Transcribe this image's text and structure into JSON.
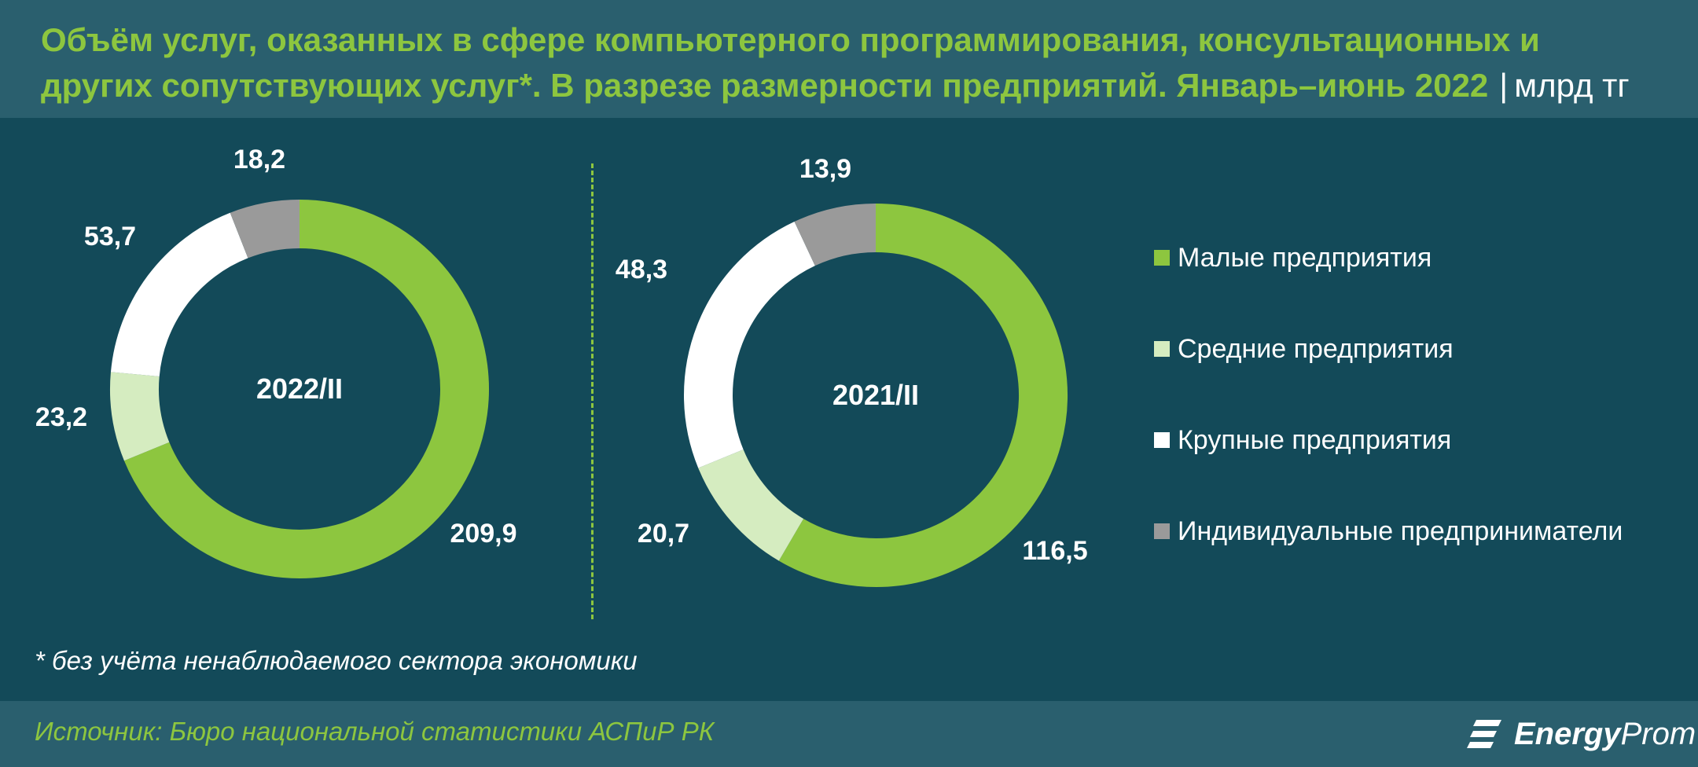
{
  "title": {
    "line1": "Объём услуг, оказанных в сфере компьютерного программирования, консультационных и",
    "line2": "других сопутствующих услуг*. В разрезе размерности предприятий. Январь–июнь 2022",
    "separator": "|",
    "unit": "млрд тг"
  },
  "colors": {
    "background": "#134a59",
    "header": "#2a5f6e",
    "small": "#8dc63f",
    "medium": "#d5ecc0",
    "large": "#ffffff",
    "individual": "#9a9a9a"
  },
  "chart_data": [
    {
      "type": "pie",
      "center_label": "2022/II",
      "categories": [
        "Малые предприятия",
        "Средние предприятия",
        "Крупные предприятия",
        "Индивидуальные предприниматели"
      ],
      "values": [
        209.9,
        23.2,
        53.7,
        18.2
      ],
      "value_labels": [
        "209,9",
        "23,2",
        "53,7",
        "18,2"
      ]
    },
    {
      "type": "pie",
      "center_label": "2021/II",
      "categories": [
        "Малые предприятия",
        "Средние предприятия",
        "Крупные предприятия",
        "Индивидуальные предприниматели"
      ],
      "values": [
        116.5,
        20.7,
        48.3,
        13.9
      ],
      "value_labels": [
        "116,5",
        "20,7",
        "48,3",
        "13,9"
      ]
    }
  ],
  "legend": {
    "placement": "right",
    "items": [
      {
        "label": "Малые предприятия",
        "color": "#8dc63f"
      },
      {
        "label": "Средние предприятия",
        "color": "#d5ecc0"
      },
      {
        "label": "Крупные предприятия",
        "color": "#ffffff"
      },
      {
        "label": "Индивидуальные предприниматели",
        "color": "#9a9a9a"
      }
    ]
  },
  "footnote": "* без учёта ненаблюдаемого сектора экономики",
  "source": "Источник: Бюро национальной статистики АСПиР РК",
  "logo": {
    "bold": "Energy",
    "light": "Prom"
  }
}
